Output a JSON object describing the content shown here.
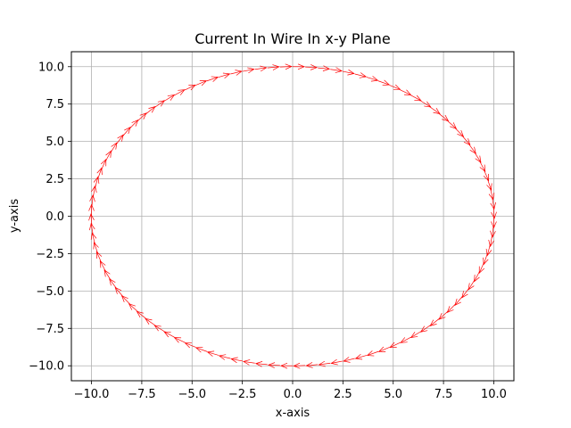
{
  "chart_data": {
    "type": "quiver",
    "title": "Current In Wire In x-y Plane",
    "xlabel": "x-axis",
    "ylabel": "y-axis",
    "xlim": [
      -11.0,
      11.0
    ],
    "ylim": [
      -11.0,
      11.0
    ],
    "xticks": [
      -10.0,
      -7.5,
      -5.0,
      -2.5,
      0.0,
      2.5,
      5.0,
      7.5,
      10.0
    ],
    "xtick_labels": [
      "−10.0",
      "−7.5",
      "−5.0",
      "−2.5",
      "0.0",
      "2.5",
      "5.0",
      "7.5",
      "10.0"
    ],
    "yticks": [
      -10.0,
      -7.5,
      -5.0,
      -2.5,
      0.0,
      2.5,
      5.0,
      7.5,
      10.0
    ],
    "ytick_labels": [
      "−10.0",
      "−7.5",
      "−5.0",
      "−2.5",
      "0.0",
      "2.5",
      "5.0",
      "7.5",
      "10.0"
    ],
    "grid": true,
    "arrow_color": "#ff0000",
    "series": [
      {
        "shape": "circle",
        "center": [
          0,
          0
        ],
        "radius": 10,
        "arrow_count": 100,
        "direction": "clockwise"
      }
    ]
  }
}
